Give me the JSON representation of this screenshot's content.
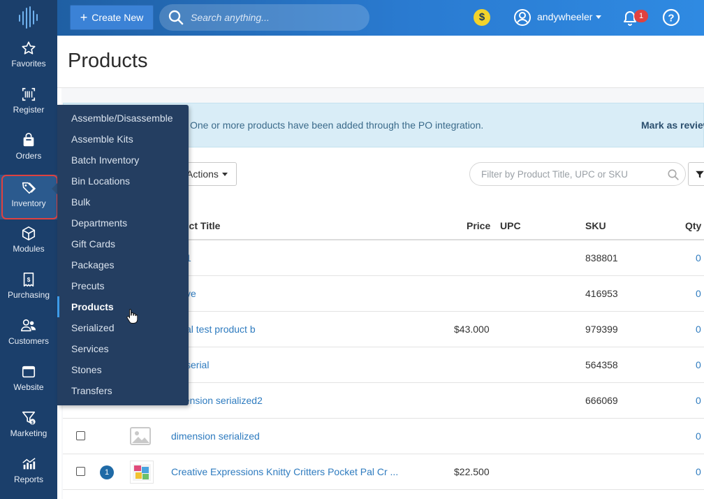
{
  "topbar": {
    "create_label": "Create New",
    "search_placeholder": "Search anything...",
    "coin_symbol": "$",
    "username": "andywheeler",
    "notifications_count": "1",
    "help_symbol": "?"
  },
  "leftnav": {
    "items": [
      {
        "label": "Favorites",
        "icon": "star-icon"
      },
      {
        "label": "Register",
        "icon": "barcode-icon"
      },
      {
        "label": "Orders",
        "icon": "bag-icon"
      },
      {
        "label": "Inventory",
        "icon": "tags-icon"
      },
      {
        "label": "Modules",
        "icon": "cube-icon"
      },
      {
        "label": "Purchasing",
        "icon": "invoice-icon"
      },
      {
        "label": "Customers",
        "icon": "users-icon"
      },
      {
        "label": "Website",
        "icon": "browser-icon"
      },
      {
        "label": "Marketing",
        "icon": "funnel-icon"
      },
      {
        "label": "Reports",
        "icon": "chart-icon"
      }
    ],
    "active": "Inventory"
  },
  "flyout": {
    "items": [
      "Assemble/Disassemble",
      "Assemble Kits",
      "Batch Inventory",
      "Bin Locations",
      "Bulk",
      "Departments",
      "Gift Cards",
      "Packages",
      "Precuts",
      "Products",
      "Serialized",
      "Services",
      "Stones",
      "Transfers"
    ],
    "active": "Products"
  },
  "page": {
    "title": "Products",
    "alert_message": "One or more products have been added through the PO integration.",
    "alert_action": "Mark as reviewed",
    "actions_label": "Actions",
    "filter_placeholder": "Filter by Product Title, UPC or SKU"
  },
  "table": {
    "headers": {
      "title": "uct Title",
      "price": "Price",
      "upc": "UPC",
      "sku": "SKU",
      "qty": "Qty"
    },
    "rows": [
      {
        "title": "1",
        "price": "",
        "upc": "",
        "sku": "838801",
        "qty": "0"
      },
      {
        "title": "ve",
        "price": "",
        "upc": "",
        "sku": "416953",
        "qty": "0"
      },
      {
        "title": "al test product b",
        "price": "$43.000",
        "upc": "",
        "sku": "979399",
        "qty": "0"
      },
      {
        "title": "serial",
        "price": "",
        "upc": "",
        "sku": "564358",
        "qty": "0"
      },
      {
        "title": "dension serialized2",
        "price": "",
        "upc": "",
        "sku": "666069",
        "qty": "0"
      },
      {
        "title": "dimension serialized",
        "price": "",
        "upc": "",
        "sku": "",
        "qty": "0"
      },
      {
        "title": "Creative Expressions Knitty Critters Pocket Pal Cr ...",
        "price": "$22.500",
        "upc": "",
        "sku": "",
        "qty": "0",
        "badge": "1"
      }
    ]
  },
  "colors": {
    "nav_bg": "#1b3f6b",
    "topbar_start": "#1f5fa3",
    "topbar_end": "#2f8ae2",
    "flyout_bg": "#243e61",
    "link": "#2e7bbf",
    "highlight": "#e0413f"
  }
}
